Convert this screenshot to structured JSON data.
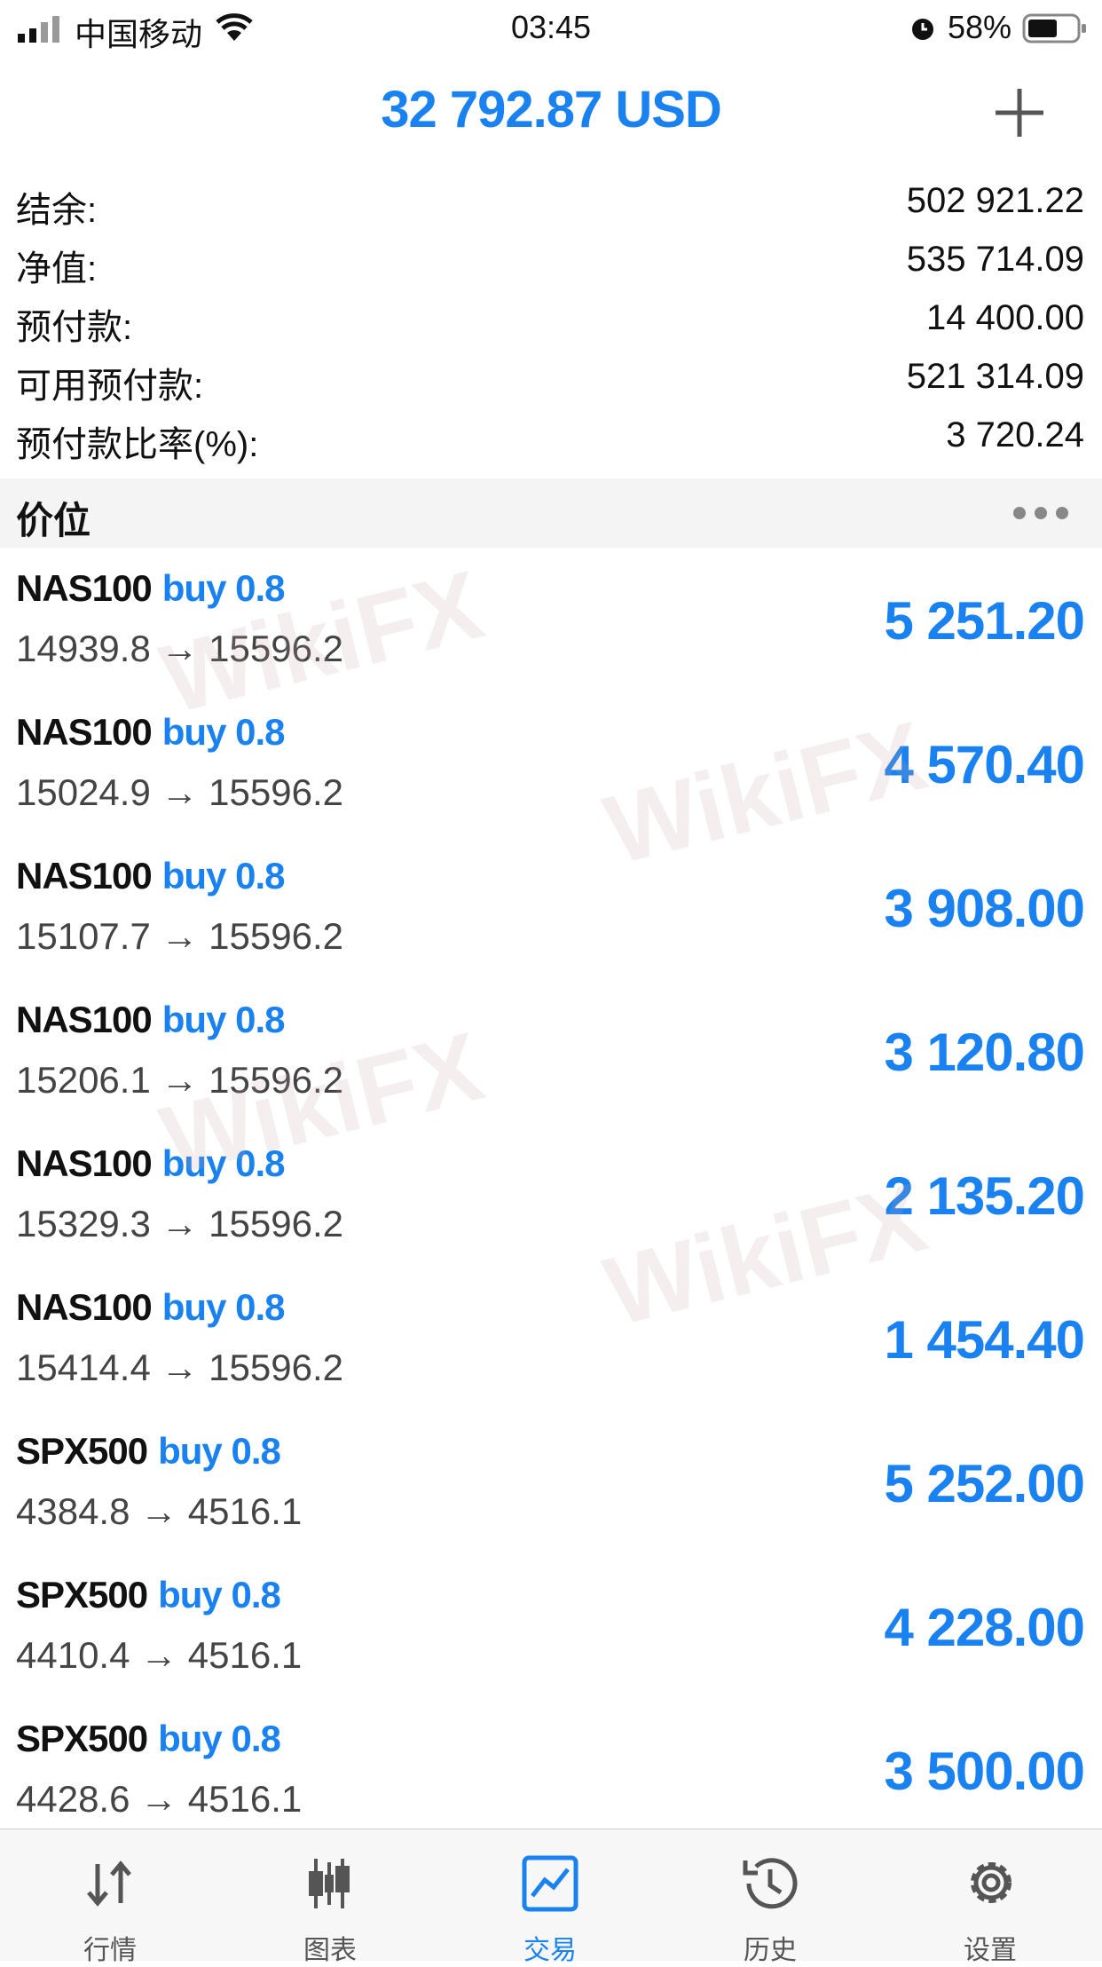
{
  "status_bar": {
    "carrier": "中国移动",
    "time": "03:45",
    "battery": "58%"
  },
  "header": {
    "title": "32 792.87 USD"
  },
  "summary": [
    {
      "label": "结余:",
      "value": "502 921.22"
    },
    {
      "label": "净值:",
      "value": "535 714.09"
    },
    {
      "label": "预付款:",
      "value": "14 400.00"
    },
    {
      "label": "可用预付款:",
      "value": "521 314.09"
    },
    {
      "label": "预付款比率(%):",
      "value": "3 720.24"
    }
  ],
  "section": {
    "title": "价位"
  },
  "positions": [
    {
      "symbol": "NAS100",
      "side": "buy 0.8",
      "prices": "14939.8 → 15596.2",
      "profit": "5 251.20"
    },
    {
      "symbol": "NAS100",
      "side": "buy 0.8",
      "prices": "15024.9 → 15596.2",
      "profit": "4 570.40"
    },
    {
      "symbol": "NAS100",
      "side": "buy 0.8",
      "prices": "15107.7 → 15596.2",
      "profit": "3 908.00"
    },
    {
      "symbol": "NAS100",
      "side": "buy 0.8",
      "prices": "15206.1 → 15596.2",
      "profit": "3 120.80"
    },
    {
      "symbol": "NAS100",
      "side": "buy 0.8",
      "prices": "15329.3 → 15596.2",
      "profit": "2 135.20"
    },
    {
      "symbol": "NAS100",
      "side": "buy 0.8",
      "prices": "15414.4 → 15596.2",
      "profit": "1 454.40"
    },
    {
      "symbol": "SPX500",
      "side": "buy 0.8",
      "prices": "4384.8 → 4516.1",
      "profit": "5 252.00"
    },
    {
      "symbol": "SPX500",
      "side": "buy 0.8",
      "prices": "4410.4 → 4516.1",
      "profit": "4 228.00"
    },
    {
      "symbol": "SPX500",
      "side": "buy 0.8",
      "prices": "4428.6 → 4516.1",
      "profit": "3 500.00"
    }
  ],
  "tabs": [
    "行情",
    "图表",
    "交易",
    "历史",
    "设置"
  ],
  "watermark": "WikiFX"
}
